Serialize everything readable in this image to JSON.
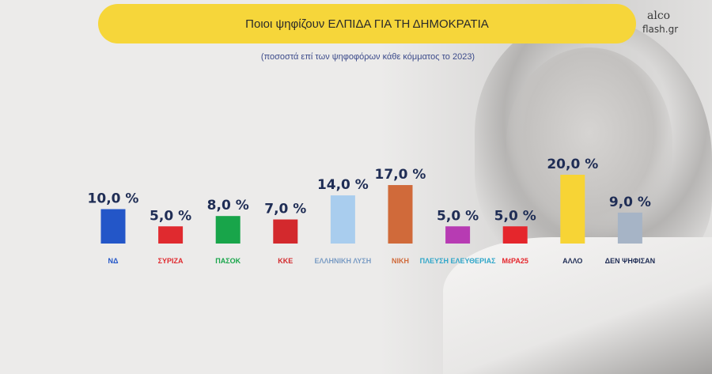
{
  "header": {
    "title": "Ποιοι ψηφίζουν ΕΛΠΙΔΑ ΓΙΑ ΤΗ ΔΗΜΟΚΡΑΤΙΑ",
    "subtitle": "(ποσοστά επί των ψηφοφόρων κάθε κόμματος το 2023)"
  },
  "brand": {
    "line1": "alco",
    "line2": "flash.gr"
  },
  "chart_data": {
    "type": "bar",
    "title": "Ποιοι ψηφίζουν ΕΛΠΙΔΑ ΓΙΑ ΤΗ ΔΗΜΟΚΡΑΤΙΑ",
    "subtitle": "(ποσοστά επί των ψηφοφόρων κάθε κόμματος το 2023)",
    "categories": [
      "ΝΔ",
      "ΣΥΡΙΖΑ",
      "ΠΑΣΟΚ",
      "ΚΚΕ",
      "ΕΛΛΗΝΙΚΗ ΛΥΣΗ",
      "ΝΙΚΗ",
      "ΠΛΕΥΣΗ ΕΛΕΥΘΕΡΙΑΣ",
      "ΜέΡΑ25",
      "ΑΛΛΟ",
      "ΔΕΝ ΨΗΦΙΣΑΝ"
    ],
    "values": [
      10.0,
      5.0,
      8.0,
      7.0,
      14.0,
      17.0,
      5.0,
      5.0,
      20.0,
      9.0
    ],
    "value_labels": [
      "10,0 %",
      "5,0 %",
      "8,0 %",
      "7,0 %",
      "14,0 %",
      "17,0 %",
      "5,0 %",
      "5,0 %",
      "20,0 %",
      "9,0 %"
    ],
    "colors": [
      "#2356c8",
      "#e02a2f",
      "#18a54a",
      "#d3292d",
      "#a9cdee",
      "#d06a3a",
      "#b73bb3",
      "#e5262c",
      "#f7d435",
      "#a6b4c6"
    ],
    "party_label_colors": [
      "#2356c8",
      "#e02a2f",
      "#18a54a",
      "#d3292d",
      "#7a9cc4",
      "#d06a3a",
      "#2fa6c9",
      "#e5262c",
      "#1f2d55",
      "#1f2d55"
    ],
    "ylim": [
      0,
      20
    ],
    "grid": false,
    "legend": "none"
  }
}
